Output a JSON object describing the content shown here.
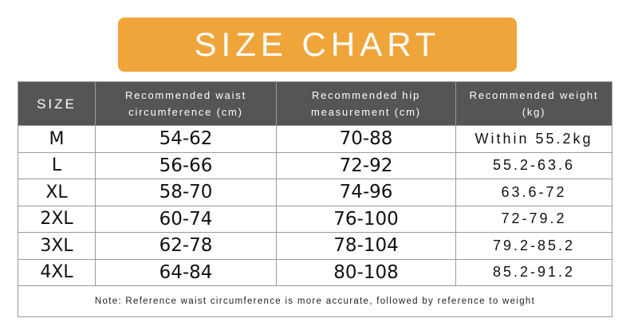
{
  "header": {
    "title": "SIZE CHART"
  },
  "table": {
    "columns": [
      "SIZE",
      "Recommended waist circumference (cm)",
      "Recommended hip measurement (cm)",
      "Recommended weight (kg)"
    ],
    "rows": [
      [
        "M",
        "54-62",
        "70-88",
        "Within 55.2kg"
      ],
      [
        "L",
        "56-66",
        "72-92",
        "55.2-63.6"
      ],
      [
        "XL",
        "58-70",
        "74-96",
        "63.6-72"
      ],
      [
        "2XL",
        "60-74",
        "76-100",
        "72-79.2"
      ],
      [
        "3XL",
        "62-78",
        "78-104",
        "79.2-85.2"
      ],
      [
        "4XL",
        "64-84",
        "80-108",
        "85.2-91.2"
      ]
    ],
    "note": "Note: Reference waist circumference is more accurate, followed by reference to weight"
  }
}
